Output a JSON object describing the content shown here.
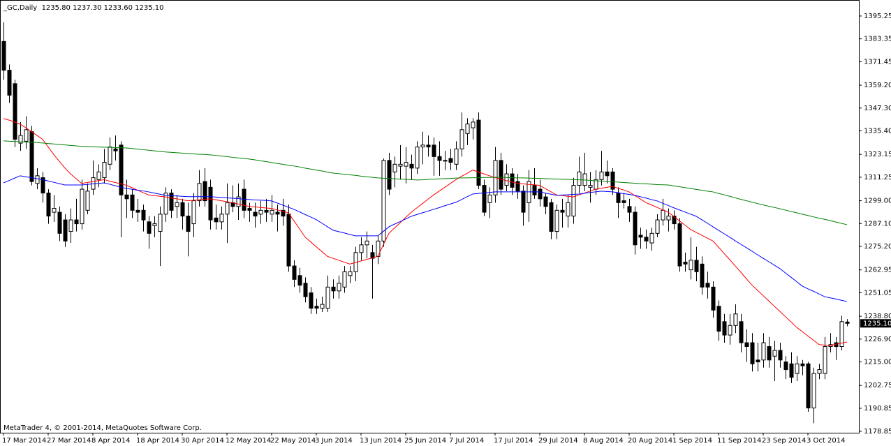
{
  "chart_data": {
    "type": "candlestick",
    "title": "_GC,Daily  1235.80 1237.30 1233.60 1235.10",
    "copyright": "MetaTrader 4, © 2001-2014, MetaQuotes Software Corp.",
    "up_color": "#ffffff",
    "down_color": "#000000",
    "categories": [
      "17 Mar 2014",
      null,
      null,
      null,
      null,
      null,
      null,
      null,
      "27 Mar 2014",
      null,
      null,
      null,
      null,
      null,
      null,
      null,
      "8 Apr 2014",
      null,
      null,
      null,
      null,
      null,
      null,
      null,
      "18 Apr 2014",
      null,
      null,
      null,
      null,
      null,
      null,
      null,
      "30 Apr 2014",
      null,
      null,
      null,
      null,
      null,
      null,
      null,
      "12 May 2014",
      null,
      null,
      null,
      null,
      null,
      null,
      null,
      "22 May 2014",
      null,
      null,
      null,
      null,
      null,
      null,
      null,
      "3 Jun 2014",
      null,
      null,
      null,
      null,
      null,
      null,
      null,
      "13 Jun 2014",
      null,
      null,
      null,
      null,
      null,
      null,
      null,
      "25 Jun 2014",
      null,
      null,
      null,
      null,
      null,
      null,
      null,
      "7 Jul 2014",
      null,
      null,
      null,
      null,
      null,
      null,
      null,
      "17 Jul 2014",
      null,
      null,
      null,
      null,
      null,
      null,
      null,
      "29 Jul 2014",
      null,
      null,
      null,
      null,
      null,
      null,
      null,
      "8 Aug 2014",
      null,
      null,
      null,
      null,
      null,
      null,
      null,
      "20 Aug 2014",
      null,
      null,
      null,
      null,
      null,
      null,
      null,
      "1 Sep 2014",
      null,
      null,
      null,
      null,
      null,
      null,
      null,
      "11 Sep 2014",
      null,
      null,
      null,
      null,
      null,
      null,
      null,
      "23 Sep 2014",
      null,
      null,
      null,
      null,
      null,
      null,
      null,
      "3 Oct 2014",
      null,
      null,
      null,
      null,
      null,
      null,
      null
    ],
    "open": [
      1382,
      1367,
      1360,
      1329,
      1330,
      1335,
      1308,
      1311,
      1303,
      1293,
      1293,
      1289,
      1283,
      1289,
      1287,
      1294,
      1305,
      1310,
      1311,
      1318,
      1326,
      1328,
      1302,
      1302,
      1294,
      1294,
      1288,
      1286,
      1283,
      1292,
      1303,
      1296,
      1298,
      1291,
      1287,
      1299,
      1309,
      1306,
      1290,
      1288,
      1292,
      1298,
      1296,
      1305,
      1295,
      1293,
      1292,
      1294,
      1292,
      1293,
      1294,
      1292,
      1265,
      1260,
      1256,
      1251,
      1244,
      1243,
      1243,
      1254,
      1252,
      1254,
      1260,
      1262,
      1272,
      1276,
      1272,
      1270,
      1278,
      1320,
      1314,
      1317,
      1317,
      1318,
      1316,
      1327,
      1328,
      1328,
      1322,
      1320,
      1321,
      1318,
      1326,
      1334,
      1337,
      1341,
      1307,
      1298,
      1302,
      1320,
      1307,
      1313,
      1309,
      1304,
      1298,
      1307,
      1305,
      1301,
      1298,
      1283,
      1294,
      1291,
      1291,
      1307,
      1307,
      1306,
      1305,
      1310,
      1314,
      1314,
      1303,
      1299,
      1296,
      1293,
      1281,
      1280,
      1277,
      1282,
      1289,
      1289,
      1291,
      1287,
      1267,
      1263,
      1268,
      1266,
      1256,
      1254,
      1244,
      1236,
      1229,
      1234,
      1236,
      1225,
      1225,
      1216,
      1216,
      1223,
      1218,
      1221,
      1215,
      1214,
      1209,
      1214,
      1214,
      1191,
      1209,
      1209,
      1223,
      1225,
      1223,
      1235.8
    ],
    "high": [
      1392,
      1370,
      1362,
      1340,
      1343,
      1338,
      1316,
      1314,
      1305,
      1302,
      1296,
      1292,
      1295,
      1300,
      1310,
      1308,
      1320,
      1318,
      1326,
      1332,
      1333,
      1330,
      1310,
      1305,
      1300,
      1297,
      1291,
      1291,
      1296,
      1306,
      1305,
      1302,
      1300,
      1298,
      1303,
      1315,
      1316,
      1310,
      1297,
      1296,
      1308,
      1307,
      1308,
      1310,
      1298,
      1298,
      1299,
      1300,
      1302,
      1297,
      1300,
      1297,
      1268,
      1264,
      1259,
      1254,
      1248,
      1249,
      1260,
      1258,
      1260,
      1265,
      1265,
      1275,
      1280,
      1283,
      1276,
      1281,
      1321,
      1324,
      1322,
      1328,
      1327,
      1323,
      1330,
      1335,
      1333,
      1332,
      1330,
      1325,
      1326,
      1330,
      1345,
      1342,
      1342,
      1345,
      1310,
      1306,
      1327,
      1324,
      1318,
      1316,
      1313,
      1307,
      1315,
      1316,
      1310,
      1303,
      1300,
      1297,
      1300,
      1302,
      1311,
      1322,
      1324,
      1314,
      1315,
      1325,
      1320,
      1316,
      1306,
      1303,
      1300,
      1296,
      1285,
      1284,
      1285,
      1292,
      1300,
      1295,
      1294,
      1290,
      1272,
      1280,
      1275,
      1270,
      1262,
      1257,
      1247,
      1240,
      1240,
      1245,
      1240,
      1232,
      1230,
      1225,
      1230,
      1228,
      1226,
      1225,
      1218,
      1220,
      1218,
      1216,
      1215,
      1212,
      1214,
      1228,
      1230,
      1228,
      1239,
      1237.3
    ],
    "low": [
      1362,
      1350,
      1327,
      1325,
      1326,
      1307,
      1305,
      1298,
      1287,
      1288,
      1278,
      1275,
      1277,
      1283,
      1284,
      1292,
      1302,
      1306,
      1308,
      1315,
      1320,
      1280,
      1290,
      1290,
      1288,
      1283,
      1274,
      1280,
      1265,
      1288,
      1290,
      1290,
      1284,
      1270,
      1280,
      1296,
      1296,
      1284,
      1284,
      1284,
      1277,
      1293,
      1289,
      1290,
      1288,
      1285,
      1287,
      1288,
      1288,
      1283,
      1286,
      1262,
      1254,
      1251,
      1246,
      1240,
      1240,
      1241,
      1241,
      1248,
      1248,
      1251,
      1256,
      1257,
      1268,
      1269,
      1248,
      1266,
      1275,
      1302,
      1306,
      1310,
      1308,
      1310,
      1313,
      1318,
      1322,
      1312,
      1312,
      1315,
      1315,
      1315,
      1322,
      1328,
      1331,
      1305,
      1291,
      1290,
      1298,
      1302,
      1304,
      1302,
      1300,
      1286,
      1288,
      1300,
      1296,
      1292,
      1279,
      1279,
      1285,
      1285,
      1287,
      1303,
      1304,
      1298,
      1302,
      1307,
      1308,
      1302,
      1290,
      1295,
      1288,
      1271,
      1274,
      1274,
      1273,
      1280,
      1286,
      1283,
      1284,
      1262,
      1262,
      1258,
      1257,
      1250,
      1248,
      1238,
      1226,
      1225,
      1224,
      1230,
      1220,
      1215,
      1210,
      1210,
      1212,
      1212,
      1205,
      1212,
      1206,
      1204,
      1205,
      1208,
      1189,
      1183,
      1206,
      1206,
      1220,
      1216,
      1221,
      1233.6
    ],
    "close": [
      1367,
      1354,
      1331,
      1333,
      1336,
      1309,
      1312,
      1303,
      1291,
      1295,
      1282,
      1278,
      1289,
      1287,
      1305,
      1304,
      1311,
      1314,
      1319,
      1327,
      1325,
      1302,
      1300,
      1294,
      1293,
      1289,
      1282,
      1287,
      1292,
      1303,
      1294,
      1298,
      1291,
      1283,
      1299,
      1308,
      1299,
      1289,
      1288,
      1292,
      1298,
      1296,
      1301,
      1294,
      1294,
      1291,
      1294,
      1293,
      1294,
      1292,
      1291,
      1265,
      1258,
      1255,
      1249,
      1243,
      1243,
      1245,
      1254,
      1252,
      1256,
      1262,
      1262,
      1272,
      1276,
      1278,
      1269,
      1278,
      1320,
      1305,
      1318,
      1318,
      1319,
      1316,
      1327,
      1328,
      1327,
      1322,
      1320,
      1320,
      1319,
      1326,
      1336,
      1339,
      1340,
      1307,
      1293,
      1302,
      1320,
      1305,
      1313,
      1306,
      1304,
      1293,
      1309,
      1302,
      1300,
      1296,
      1283,
      1294,
      1293,
      1298,
      1307,
      1314,
      1313,
      1307,
      1310,
      1314,
      1312,
      1305,
      1298,
      1298,
      1293,
      1276,
      1280,
      1278,
      1282,
      1289,
      1294,
      1291,
      1287,
      1265,
      1266,
      1268,
      1262,
      1254,
      1254,
      1242,
      1231,
      1229,
      1234,
      1240,
      1225,
      1223,
      1214,
      1215,
      1225,
      1216,
      1221,
      1216,
      1211,
      1207,
      1214,
      1213,
      1191,
      1209,
      1211,
      1223,
      1224,
      1223,
      1236,
      1235.1
    ],
    "series": [
      {
        "color": "#ff0000",
        "values": [
          1341.8,
          1341,
          1340,
          1338.9,
          1337,
          1335,
          1333,
          1331,
          1327,
          1323,
          1319.5,
          1316,
          1313,
          1310.5,
          1308,
          1308.5,
          1309,
          1309.5,
          1310,
          1309.2,
          1308.5,
          1307.8,
          1307,
          1305.8,
          1304.5,
          1303.2,
          1302,
          1301.7,
          1301.3,
          1301,
          1300.5,
          1300,
          1299.5,
          1299,
          1299.2,
          1299.5,
          1299.8,
          1300,
          1299.5,
          1299,
          1298.5,
          1298,
          1297.3,
          1296.7,
          1296,
          1295.8,
          1295.5,
          1295.2,
          1295,
          1294.2,
          1293.5,
          1292.7,
          1288.5,
          1284.3,
          1280,
          1277.5,
          1275,
          1272.5,
          1270,
          1269,
          1268,
          1267,
          1266,
          1266.8,
          1267.6,
          1268.4,
          1269.2,
          1270,
          1276,
          1282,
          1284.8,
          1287.5,
          1290.3,
          1293,
          1295.3,
          1297.5,
          1299.8,
          1302,
          1304,
          1306,
          1308,
          1310,
          1311.7,
          1313.3,
          1315,
          1314,
          1313,
          1312,
          1311,
          1310.3,
          1309.5,
          1308.8,
          1308,
          1307.8,
          1307.5,
          1307.3,
          1307,
          1305.3,
          1303.7,
          1302,
          1301.7,
          1301.3,
          1301,
          1302,
          1303,
          1304,
          1305,
          1305.5,
          1306,
          1306.5,
          1305.5,
          1304.6,
          1303.6,
          1301.7,
          1299.9,
          1298,
          1296.8,
          1295.5,
          1294.3,
          1293,
          1290.8,
          1288.5,
          1286.3,
          1284,
          1282.5,
          1281,
          1279.5,
          1278,
          1274.8,
          1271.5,
          1268.3,
          1265,
          1261.7,
          1258.3,
          1255,
          1252.3,
          1249.5,
          1246.8,
          1244,
          1241.3,
          1238.5,
          1235.8,
          1233,
          1230.8,
          1228.5,
          1226.3,
          1224,
          1223.8,
          1223.6,
          1224.2,
          1224.8,
          1225.4
        ]
      },
      {
        "color": "#0000ff",
        "values": [
          1308.3,
          1309.5,
          1310.8,
          1312,
          1311.5,
          1311,
          1310.5,
          1310,
          1309.3,
          1308.6,
          1307.9,
          1307.2,
          1307.2,
          1307.2,
          1307.2,
          1307.5,
          1307.8,
          1308,
          1308.3,
          1307.6,
          1306.8,
          1306.1,
          1305.4,
          1305,
          1304.5,
          1304.1,
          1303.6,
          1303,
          1302.4,
          1301.8,
          1301.6,
          1301.5,
          1301.3,
          1301.1,
          1301.1,
          1301.1,
          1301.1,
          1301.1,
          1300.9,
          1300.7,
          1300.5,
          1300.3,
          1300.1,
          1299.8,
          1299.6,
          1299.4,
          1299.3,
          1299.1,
          1298.9,
          1297.8,
          1296.7,
          1295.6,
          1294.5,
          1293.2,
          1291.8,
          1290.5,
          1289.1,
          1287.3,
          1285.4,
          1283.6,
          1282.9,
          1282.2,
          1281.4,
          1280.7,
          1280.7,
          1280.7,
          1280.7,
          1280.7,
          1283,
          1285.4,
          1286.8,
          1288.1,
          1289.5,
          1290.9,
          1291.8,
          1292.7,
          1293.6,
          1294.5,
          1295.4,
          1296.4,
          1297.3,
          1298.2,
          1299.6,
          1301.1,
          1302.5,
          1302.8,
          1303,
          1303.3,
          1303.6,
          1303.6,
          1303.6,
          1303.6,
          1303.6,
          1303.6,
          1303.6,
          1303.6,
          1303.6,
          1303,
          1302.4,
          1301.8,
          1302,
          1302.1,
          1302.3,
          1302.5,
          1302.9,
          1303.3,
          1303.6,
          1304,
          1303.8,
          1303.6,
          1303.2,
          1302.7,
          1302.3,
          1301.8,
          1301.1,
          1300.4,
          1299.6,
          1298.9,
          1297.7,
          1296.5,
          1295.3,
          1294.2,
          1293.1,
          1292,
          1290.9,
          1289.1,
          1287.3,
          1285.4,
          1283.6,
          1281.8,
          1280,
          1278.1,
          1276.3,
          1274.5,
          1272.7,
          1270.8,
          1269,
          1267.2,
          1265.4,
          1263.6,
          1261.3,
          1259.1,
          1256.8,
          1254.5,
          1253.1,
          1251.8,
          1250.4,
          1249,
          1248.4,
          1247.8,
          1247.1,
          1246.5
        ]
      },
      {
        "color": "#008000",
        "values": [
          1330.2,
          1330,
          1329.9,
          1329.7,
          1329.6,
          1329.4,
          1329.3,
          1329.1,
          1328.8,
          1328.6,
          1328.3,
          1328.1,
          1327.8,
          1327.6,
          1327.3,
          1327.2,
          1327.1,
          1327,
          1326.9,
          1326.8,
          1326.7,
          1326.6,
          1326.5,
          1326.2,
          1325.9,
          1325.6,
          1325.3,
          1325,
          1324.7,
          1324.4,
          1324.2,
          1324,
          1323.8,
          1323.6,
          1323.4,
          1323.2,
          1323.1,
          1322.9,
          1322.6,
          1322.3,
          1322,
          1321.6,
          1321.3,
          1321,
          1320.7,
          1320.3,
          1319.8,
          1319.4,
          1318.9,
          1318.4,
          1318,
          1317.5,
          1317.1,
          1316.6,
          1316,
          1315.5,
          1315,
          1314.5,
          1313.9,
          1313.4,
          1313.1,
          1312.8,
          1312.5,
          1312.2,
          1311.8,
          1311.5,
          1311.2,
          1310.9,
          1310.7,
          1310.6,
          1310.4,
          1310.3,
          1310.1,
          1310,
          1309.8,
          1309.9,
          1310.1,
          1310.2,
          1310.4,
          1310.5,
          1310.6,
          1310.8,
          1310.9,
          1310.9,
          1311,
          1311,
          1311.1,
          1311.1,
          1311.2,
          1311.2,
          1311.1,
          1311,
          1310.9,
          1310.9,
          1310.8,
          1310.7,
          1310.6,
          1310.5,
          1310.4,
          1310.3,
          1310.2,
          1310.1,
          1310,
          1309.9,
          1309.8,
          1309.6,
          1309.4,
          1309.2,
          1309,
          1308.9,
          1308.7,
          1308.5,
          1308.3,
          1308.1,
          1307.9,
          1307.8,
          1307.6,
          1307.4,
          1307.3,
          1307.2,
          1306.7,
          1306.3,
          1305.8,
          1305.4,
          1304.9,
          1304.5,
          1304,
          1303.6,
          1302.8,
          1302.1,
          1301.3,
          1300.5,
          1299.7,
          1299,
          1298.2,
          1297.5,
          1296.8,
          1296.1,
          1295.5,
          1294.8,
          1294.1,
          1293.4,
          1292.7,
          1292,
          1291.3,
          1290.6,
          1289.9,
          1289.3,
          1288.6,
          1287.9,
          1287.2,
          1286.5
        ]
      }
    ],
    "ylim": [
      1178.1,
      1402.5
    ],
    "yticks": [
      1395.25,
      1383.35,
      1371.45,
      {
        "value": 1359.2,
        "label": "1359.20"
      },
      {
        "value": 1347.3,
        "label": "1347.30"
      },
      {
        "value": 1335.4,
        "label": "1335.40"
      },
      1323.15,
      1311.25,
      {
        "value": 1299,
        "label": "1299.00"
      },
      {
        "value": 1287.1,
        "label": "1287.10"
      },
      {
        "value": 1275.2,
        "label": "1275.20"
      },
      1262.95,
      1251.05,
      {
        "value": 1238.8,
        "label": "1238.80"
      },
      {
        "value": 1226.9,
        "label": "1226.90"
      },
      {
        "value": 1215,
        "label": "1215.00"
      },
      1202.75,
      1190.85,
      1178.85
    ],
    "price_tag": {
      "value": 1235.1,
      "label": "1235.10"
    }
  }
}
